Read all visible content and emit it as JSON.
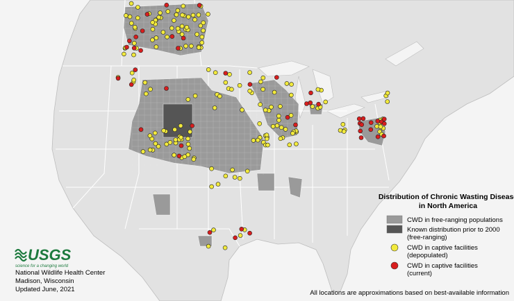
{
  "legend": {
    "title": [
      "Distribution of Chronic Wasting Disease",
      "in North America"
    ],
    "items": [
      {
        "color": "#9a9a9a",
        "label": [
          "CWD in free-ranging populations"
        ]
      },
      {
        "color": "#555555",
        "label": [
          "Known distribution prior to 2000",
          "(free-ranging)"
        ]
      },
      {
        "color": "#f2ea3c",
        "label": [
          "CWD in captive facilities",
          "(depopulated)"
        ]
      },
      {
        "color": "#d81e1e",
        "label": [
          "CWD in captive facilities",
          "(current)"
        ]
      }
    ]
  },
  "credit": {
    "logo": "USGS",
    "tagline": "science for a changing world",
    "lines": [
      "National Wildlife Health Center",
      "Madison, Wisconsin",
      "Updated June, 2021"
    ]
  },
  "note": "All locations are approximations based on best-available information"
}
